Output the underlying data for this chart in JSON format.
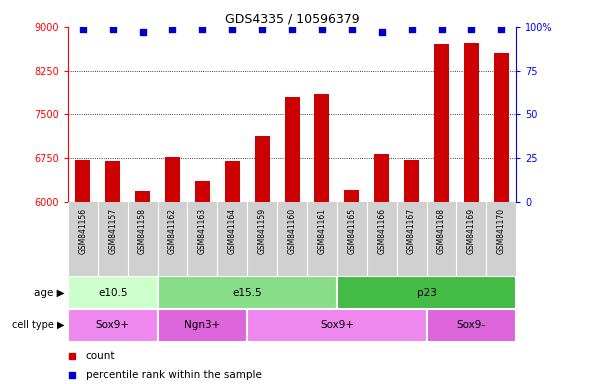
{
  "title": "GDS4335 / 10596379",
  "samples": [
    "GSM841156",
    "GSM841157",
    "GSM841158",
    "GSM841162",
    "GSM841163",
    "GSM841164",
    "GSM841159",
    "GSM841160",
    "GSM841161",
    "GSM841165",
    "GSM841166",
    "GSM841167",
    "GSM841168",
    "GSM841169",
    "GSM841170"
  ],
  "counts": [
    6720,
    6690,
    6180,
    6760,
    6360,
    6690,
    7120,
    7800,
    7840,
    6200,
    6820,
    6720,
    8700,
    8730,
    8550
  ],
  "pct_vals": [
    99,
    99,
    97,
    99,
    99,
    99,
    99,
    99,
    99,
    99,
    97,
    99,
    99,
    99,
    99
  ],
  "ylim_left": [
    6000,
    9000
  ],
  "ylim_right": [
    0,
    100
  ],
  "yticks_left": [
    6000,
    6750,
    7500,
    8250,
    9000
  ],
  "yticks_right": [
    0,
    25,
    50,
    75,
    100
  ],
  "bar_color": "#cc0000",
  "dot_color": "#0000cc",
  "plot_bg": "#ffffff",
  "gsm_bg": "#d0d0d0",
  "age_groups": [
    {
      "label": "e10.5",
      "start": 0,
      "end": 3,
      "color": "#ccffcc"
    },
    {
      "label": "e15.5",
      "start": 3,
      "end": 9,
      "color": "#88dd88"
    },
    {
      "label": "p23",
      "start": 9,
      "end": 15,
      "color": "#44bb44"
    }
  ],
  "cell_groups": [
    {
      "label": "Sox9+",
      "start": 0,
      "end": 3,
      "color": "#ee88ee"
    },
    {
      "label": "Ngn3+",
      "start": 3,
      "end": 6,
      "color": "#dd66dd"
    },
    {
      "label": "Sox9+",
      "start": 6,
      "end": 12,
      "color": "#ee88ee"
    },
    {
      "label": "Sox9-",
      "start": 12,
      "end": 15,
      "color": "#dd66dd"
    }
  ],
  "legend_count_color": "#cc0000",
  "legend_pct_color": "#0000cc",
  "fig_width": 5.9,
  "fig_height": 3.84,
  "dpi": 100
}
